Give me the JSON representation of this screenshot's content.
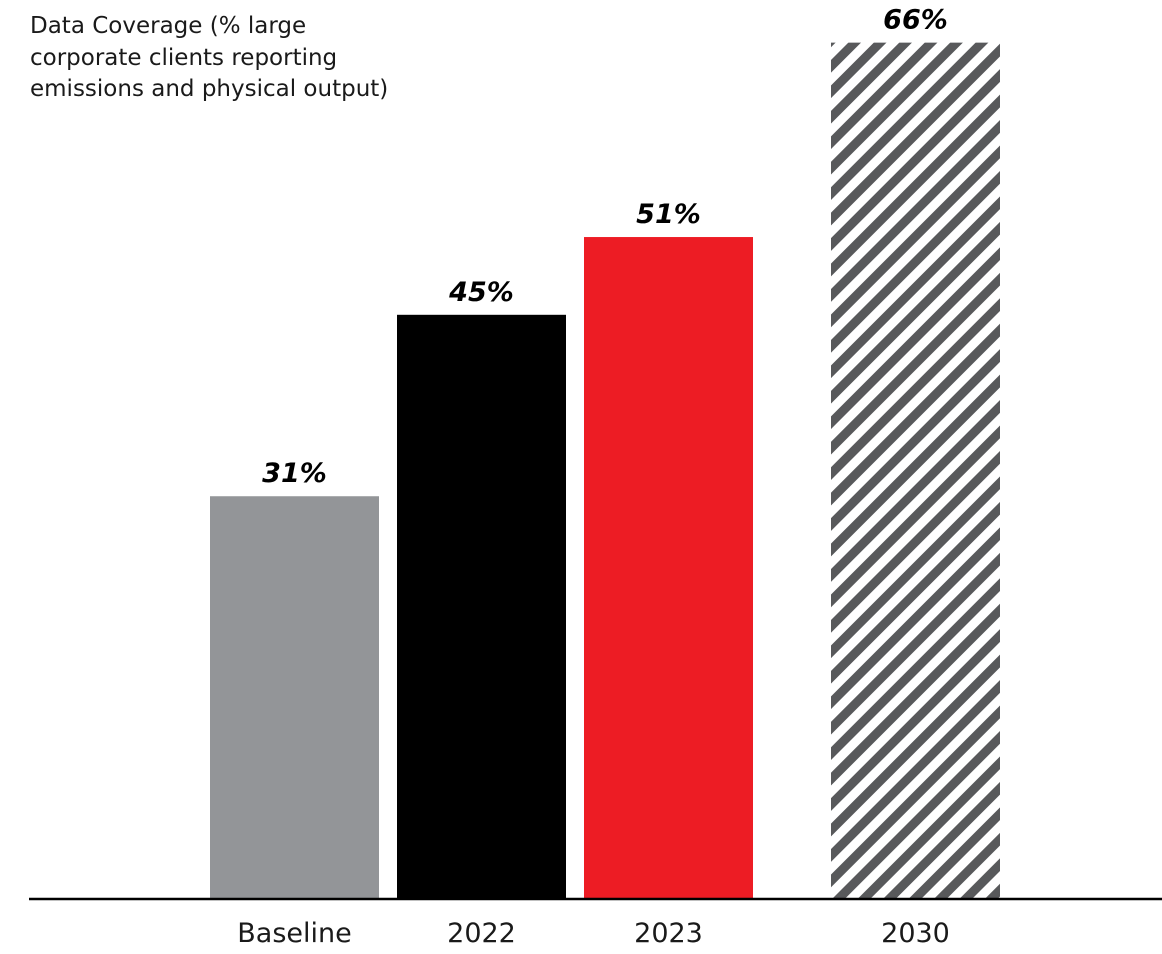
{
  "chart_data": {
    "type": "bar",
    "title": "",
    "ylabel": "Data Coverage (% large corporate clients reporting emissions and physical output)",
    "xlabel": "",
    "categories": [
      "Baseline",
      "2022",
      "2023",
      "2030"
    ],
    "values": [
      31,
      45,
      51,
      66
    ],
    "value_labels": [
      "31%",
      "45%",
      "51%",
      "66%"
    ],
    "ylim": [
      0,
      70
    ],
    "grid": false,
    "legend": "none",
    "bar_colors": [
      "#939598",
      "#000000",
      "#ed1c24",
      "hatched"
    ],
    "hatch_colors": {
      "stripe": "#58595b",
      "background": "#ffffff"
    },
    "axis_color": "#000000"
  }
}
